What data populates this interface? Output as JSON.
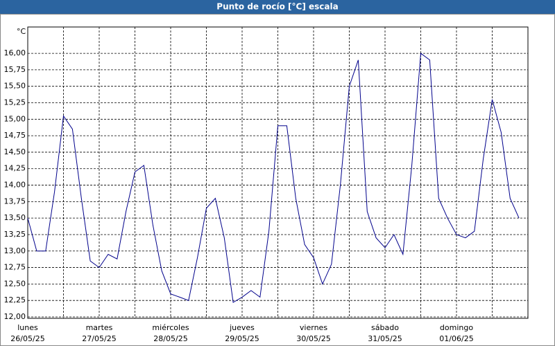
{
  "chart_data": {
    "type": "line",
    "title": "Punto de rocío [°C] escala",
    "unit": "°C",
    "x_labels": [
      {
        "day": "lunes",
        "date": "26/05/25"
      },
      {
        "day": "martes",
        "date": "27/05/25"
      },
      {
        "day": "miércoles",
        "date": "28/05/25"
      },
      {
        "day": "jueves",
        "date": "29/05/25"
      },
      {
        "day": "viernes",
        "date": "30/05/25"
      },
      {
        "day": "sábado",
        "date": "31/05/25"
      },
      {
        "day": "domingo",
        "date": "01/06/25"
      }
    ],
    "color": "#00008b",
    "values": [
      13.5,
      13.0,
      13.0,
      13.9,
      15.05,
      14.85,
      13.8,
      12.85,
      12.75,
      12.95,
      12.88,
      13.6,
      14.2,
      14.3,
      13.4,
      12.7,
      12.35,
      12.3,
      12.25,
      12.9,
      13.65,
      13.8,
      13.2,
      12.22,
      12.3,
      12.4,
      12.3,
      13.3,
      14.9,
      14.9,
      13.8,
      13.1,
      12.9,
      12.5,
      12.8,
      14.0,
      15.5,
      15.9,
      13.6,
      13.2,
      13.05,
      13.25,
      12.95,
      14.3,
      16.0,
      15.9,
      13.8,
      13.5,
      13.25,
      13.2,
      13.3,
      14.4,
      15.3,
      14.8,
      13.8,
      13.5
    ],
    "ylim": [
      12,
      16.4
    ],
    "yticks": [
      {
        "value": 12,
        "label": "12,00"
      },
      {
        "value": 12.25,
        "label": "12,25"
      },
      {
        "value": 12.5,
        "label": "12,50"
      },
      {
        "value": 12.75,
        "label": "12,75"
      },
      {
        "value": 13,
        "label": "13,00"
      },
      {
        "value": 13.25,
        "label": "13,25"
      },
      {
        "value": 13.5,
        "label": "13,50"
      },
      {
        "value": 13.75,
        "label": "13,75"
      },
      {
        "value": 14,
        "label": "14,00"
      },
      {
        "value": 14.25,
        "label": "14,25"
      },
      {
        "value": 14.5,
        "label": "14,50"
      },
      {
        "value": 14.75,
        "label": "14,75"
      },
      {
        "value": 15,
        "label": "15,00"
      },
      {
        "value": 15.25,
        "label": "15,25"
      },
      {
        "value": 15.5,
        "label": "15,50"
      },
      {
        "value": 15.75,
        "label": "15,75"
      },
      {
        "value": 16,
        "label": "16,00"
      }
    ],
    "grid": true
  }
}
